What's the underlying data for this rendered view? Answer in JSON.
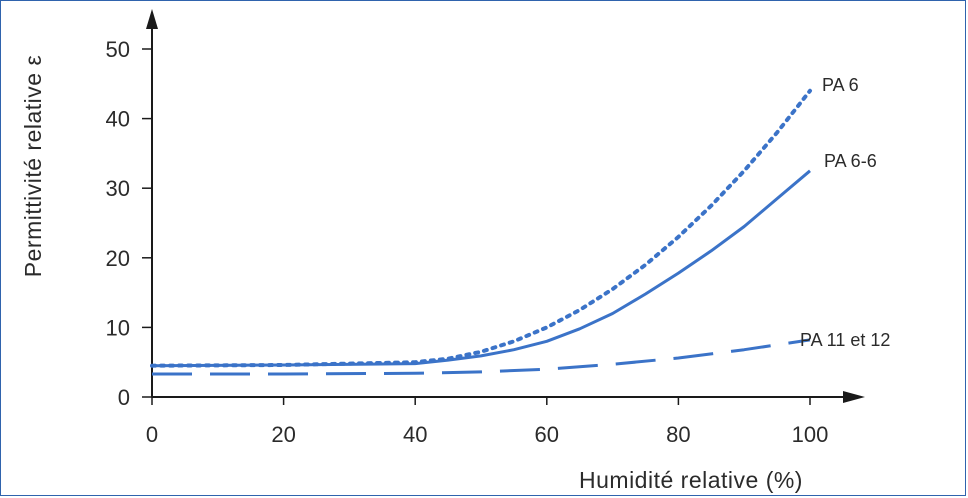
{
  "chart_data": {
    "type": "line",
    "xlabel": "Humidité relative (%)",
    "ylabel": "Permittivité relative ε",
    "xlim": [
      0,
      100
    ],
    "ylim": [
      0,
      50
    ],
    "x_ticks": [
      0,
      20,
      40,
      60,
      80,
      100
    ],
    "y_ticks": [
      0,
      10,
      20,
      30,
      40,
      50
    ],
    "grid": false,
    "series": [
      {
        "name": "PA 6",
        "style": "dotted",
        "color": "#3b73c8",
        "x": [
          0,
          20,
          40,
          45,
          50,
          55,
          60,
          65,
          70,
          75,
          80,
          85,
          90,
          95,
          100
        ],
        "y": [
          4.5,
          4.6,
          5.0,
          5.5,
          6.5,
          8.0,
          10.0,
          12.5,
          15.5,
          19.0,
          23.0,
          27.5,
          32.5,
          38.0,
          44.0
        ]
      },
      {
        "name": "PA 6-6",
        "style": "solid",
        "color": "#3b73c8",
        "x": [
          0,
          20,
          40,
          45,
          50,
          55,
          60,
          65,
          70,
          75,
          80,
          85,
          90,
          95,
          100
        ],
        "y": [
          4.5,
          4.6,
          4.8,
          5.3,
          5.9,
          6.8,
          8.0,
          9.8,
          12.0,
          14.8,
          17.8,
          21.0,
          24.5,
          28.5,
          32.5
        ]
      },
      {
        "name": "PA 11 et 12",
        "style": "dashed",
        "color": "#3b73c8",
        "x": [
          0,
          20,
          40,
          50,
          60,
          70,
          80,
          90,
          100
        ],
        "y": [
          3.3,
          3.3,
          3.4,
          3.6,
          4.0,
          4.7,
          5.6,
          6.8,
          8.2
        ]
      }
    ]
  }
}
